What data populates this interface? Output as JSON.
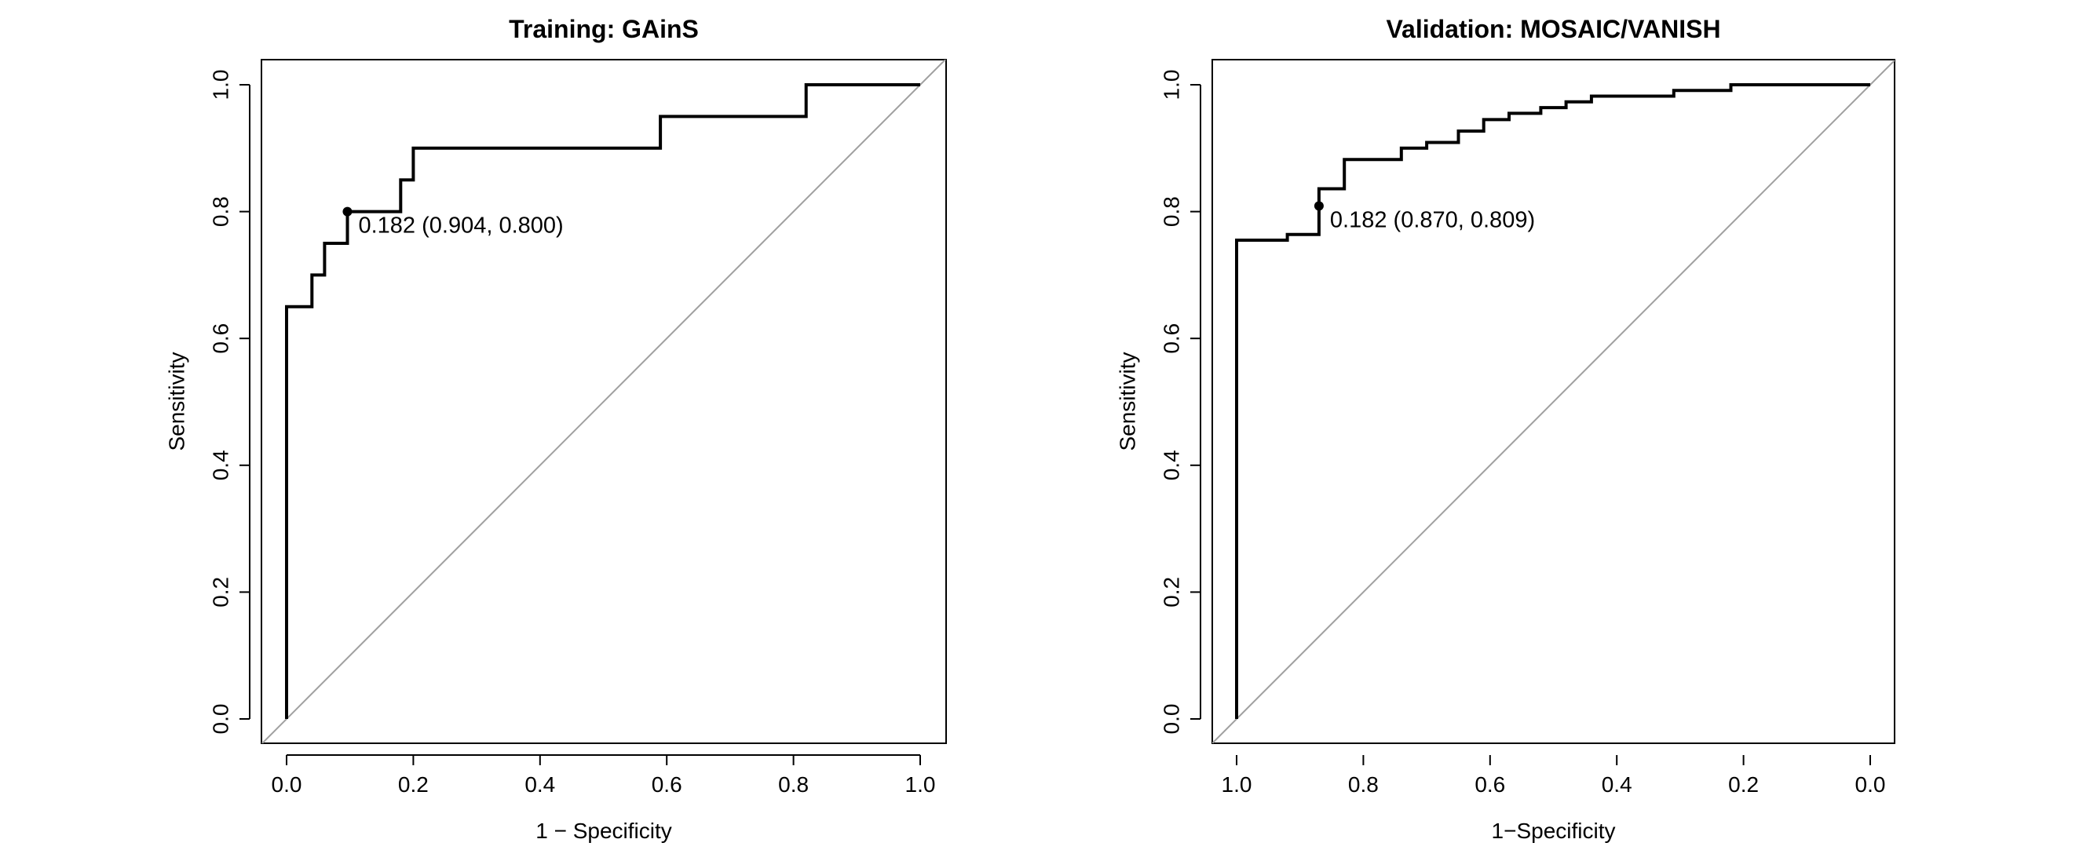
{
  "colors": {
    "curve": "#000000",
    "diagonal": "#a0a0a0",
    "frame": "#000000",
    "background": "#ffffff"
  },
  "chart_data": [
    {
      "type": "line",
      "title": "Training: GAinS",
      "xlabel": "1 − Specificity",
      "ylabel": "Sensitivity",
      "xlim": [
        0,
        1
      ],
      "ylim": [
        0,
        1
      ],
      "x_reversed": false,
      "xticks": [
        "0.0",
        "0.2",
        "0.4",
        "0.6",
        "0.8",
        "1.0"
      ],
      "yticks": [
        "0.0",
        "0.2",
        "0.4",
        "0.6",
        "0.8",
        "1.0"
      ],
      "grid": false,
      "diagonal": true,
      "series": [
        {
          "x": [
            0,
            0,
            0.04,
            0.04,
            0.06,
            0.06,
            0.096,
            0.096,
            0.18,
            0.18,
            0.2,
            0.2,
            0.59,
            0.59,
            0.82,
            0.82,
            1.0
          ],
          "y": [
            0,
            0.65,
            0.65,
            0.7,
            0.7,
            0.75,
            0.75,
            0.8,
            0.8,
            0.85,
            0.85,
            0.9,
            0.9,
            0.95,
            0.95,
            1.0,
            1.0
          ]
        }
      ],
      "threshold_point": {
        "x": 0.096,
        "y": 0.8
      },
      "annotation": "0.182 (0.904, 0.800)"
    },
    {
      "type": "line",
      "title": "Validation: MOSAIC/VANISH",
      "xlabel": "1−Specificity",
      "ylabel": "Sensitivity",
      "xlim": [
        1,
        0
      ],
      "ylim": [
        0,
        1
      ],
      "x_reversed": true,
      "xticks": [
        "1.0",
        "0.8",
        "0.6",
        "0.4",
        "0.2",
        "0.0"
      ],
      "yticks": [
        "0.0",
        "0.2",
        "0.4",
        "0.6",
        "0.8",
        "1.0"
      ],
      "grid": false,
      "diagonal": true,
      "series": [
        {
          "x": [
            1.0,
            1.0,
            0.92,
            0.92,
            0.87,
            0.87,
            0.83,
            0.83,
            0.74,
            0.74,
            0.7,
            0.7,
            0.65,
            0.65,
            0.61,
            0.61,
            0.57,
            0.57,
            0.52,
            0.52,
            0.48,
            0.48,
            0.44,
            0.44,
            0.31,
            0.31,
            0.22,
            0.22,
            0.0
          ],
          "y": [
            0,
            0.755,
            0.755,
            0.764,
            0.764,
            0.836,
            0.836,
            0.882,
            0.882,
            0.9,
            0.9,
            0.909,
            0.909,
            0.927,
            0.927,
            0.945,
            0.945,
            0.955,
            0.955,
            0.964,
            0.964,
            0.973,
            0.973,
            0.982,
            0.982,
            0.991,
            0.991,
            1.0,
            1.0
          ]
        }
      ],
      "threshold_point": {
        "x": 0.87,
        "y": 0.809
      },
      "annotation": "0.182 (0.870, 0.809)"
    }
  ]
}
